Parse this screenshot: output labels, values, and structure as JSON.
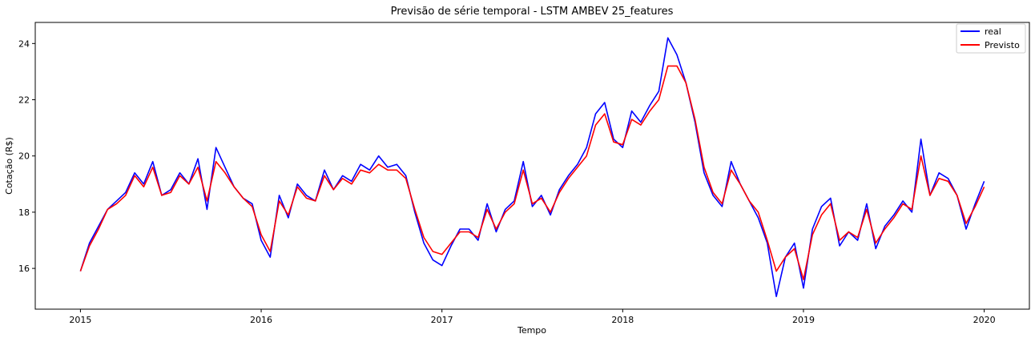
{
  "chart_data": {
    "type": "line",
    "title": "Previsão de série temporal - LSTM AMBEV 25_features",
    "xlabel": "Tempo",
    "ylabel": "Cotação (R$)",
    "xlim": [
      2014.75,
      2020.25
    ],
    "ylim": [
      14.55,
      24.75
    ],
    "x_ticks": [
      2015,
      2016,
      2017,
      2018,
      2019,
      2020
    ],
    "x_tick_labels": [
      "2015",
      "2016",
      "2017",
      "2018",
      "2019",
      "2020"
    ],
    "y_ticks": [
      16,
      18,
      20,
      22,
      24
    ],
    "y_tick_labels": [
      "16",
      "18",
      "20",
      "22",
      "24"
    ],
    "grid": false,
    "legend_position": "top-right",
    "x": [
      2015.0,
      2015.05,
      2015.1,
      2015.15,
      2015.2,
      2015.25,
      2015.3,
      2015.35,
      2015.4,
      2015.45,
      2015.5,
      2015.55,
      2015.6,
      2015.65,
      2015.7,
      2015.75,
      2015.8,
      2015.85,
      2015.9,
      2015.95,
      2016.0,
      2016.05,
      2016.1,
      2016.15,
      2016.2,
      2016.25,
      2016.3,
      2016.35,
      2016.4,
      2016.45,
      2016.5,
      2016.55,
      2016.6,
      2016.65,
      2016.7,
      2016.75,
      2016.8,
      2016.85,
      2016.9,
      2016.95,
      2017.0,
      2017.05,
      2017.1,
      2017.15,
      2017.2,
      2017.25,
      2017.3,
      2017.35,
      2017.4,
      2017.45,
      2017.5,
      2017.55,
      2017.6,
      2017.65,
      2017.7,
      2017.75,
      2017.8,
      2017.85,
      2017.9,
      2017.95,
      2018.0,
      2018.05,
      2018.1,
      2018.15,
      2018.2,
      2018.25,
      2018.3,
      2018.35,
      2018.4,
      2018.45,
      2018.5,
      2018.55,
      2018.6,
      2018.65,
      2018.7,
      2018.75,
      2018.8,
      2018.85,
      2018.9,
      2018.95,
      2019.0,
      2019.05,
      2019.1,
      2019.15,
      2019.2,
      2019.25,
      2019.3,
      2019.35,
      2019.4,
      2019.45,
      2019.5,
      2019.55,
      2019.6,
      2019.65,
      2019.7,
      2019.75,
      2019.8,
      2019.85,
      2019.9,
      2019.95,
      2020.0
    ],
    "series": [
      {
        "name": "real",
        "color": "#0000ff",
        "values": [
          15.9,
          16.9,
          17.5,
          18.1,
          18.4,
          18.7,
          19.4,
          19.0,
          19.8,
          18.6,
          18.8,
          19.4,
          19.0,
          19.9,
          18.1,
          20.3,
          19.6,
          18.9,
          18.5,
          18.3,
          17.0,
          16.4,
          18.6,
          17.8,
          19.0,
          18.6,
          18.4,
          19.5,
          18.8,
          19.3,
          19.1,
          19.7,
          19.5,
          20.0,
          19.6,
          19.7,
          19.3,
          18.0,
          16.9,
          16.3,
          16.1,
          16.8,
          17.4,
          17.4,
          17.0,
          18.3,
          17.3,
          18.1,
          18.4,
          19.8,
          18.2,
          18.6,
          17.9,
          18.8,
          19.3,
          19.7,
          20.3,
          21.5,
          21.9,
          20.6,
          20.3,
          21.6,
          21.2,
          21.8,
          22.3,
          24.2,
          23.6,
          22.6,
          21.2,
          19.4,
          18.6,
          18.2,
          19.8,
          19.0,
          18.4,
          17.8,
          16.9,
          15.0,
          16.4,
          16.9,
          15.3,
          17.4,
          18.2,
          18.5,
          16.8,
          17.3,
          17.0,
          18.3,
          16.7,
          17.5,
          17.9,
          18.4,
          18.0,
          20.6,
          18.6,
          19.4,
          19.2,
          18.6,
          17.4,
          18.3,
          19.1
        ]
      },
      {
        "name": "Previsto",
        "color": "#ff0000",
        "values": [
          15.9,
          16.8,
          17.4,
          18.1,
          18.3,
          18.6,
          19.3,
          18.9,
          19.6,
          18.6,
          18.7,
          19.3,
          19.0,
          19.6,
          18.4,
          19.8,
          19.4,
          18.9,
          18.5,
          18.2,
          17.2,
          16.6,
          18.4,
          17.9,
          18.9,
          18.5,
          18.4,
          19.3,
          18.8,
          19.2,
          19.0,
          19.5,
          19.4,
          19.7,
          19.5,
          19.5,
          19.2,
          18.1,
          17.1,
          16.6,
          16.5,
          16.9,
          17.3,
          17.3,
          17.1,
          18.1,
          17.4,
          18.0,
          18.3,
          19.5,
          18.3,
          18.5,
          18.0,
          18.7,
          19.2,
          19.6,
          20.0,
          21.1,
          21.5,
          20.5,
          20.4,
          21.3,
          21.1,
          21.6,
          22.0,
          23.2,
          23.2,
          22.6,
          21.3,
          19.6,
          18.7,
          18.3,
          19.5,
          19.0,
          18.4,
          18.0,
          17.0,
          15.9,
          16.4,
          16.7,
          15.6,
          17.2,
          17.9,
          18.3,
          17.0,
          17.3,
          17.1,
          18.1,
          16.9,
          17.4,
          17.8,
          18.3,
          18.1,
          20.0,
          18.6,
          19.2,
          19.1,
          18.6,
          17.6,
          18.2,
          18.9
        ]
      }
    ]
  }
}
